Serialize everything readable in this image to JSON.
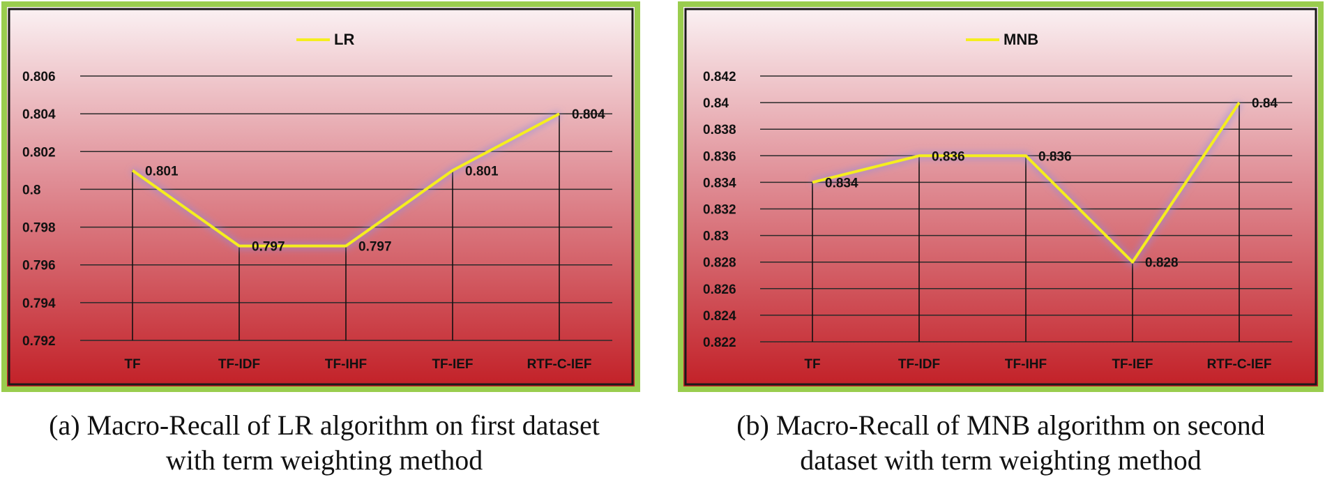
{
  "colors": {
    "frame": "#9acd4e",
    "line": "#f5ee1e",
    "plot_top": "#fbf3f5",
    "plot_bottom": "#c21f26",
    "text": "#111111"
  },
  "chart_data": [
    {
      "type": "line",
      "legend": "LR",
      "legend_position": "top-center",
      "categories": [
        "TF",
        "TF-IDF",
        "TF-IHF",
        "TF-IEF",
        "RTF-C-IEF"
      ],
      "values": [
        0.801,
        0.797,
        0.797,
        0.801,
        0.804
      ],
      "data_labels": [
        "0.801",
        "0.797",
        "0.797",
        "0.801",
        "0.804"
      ],
      "ylim": [
        0.792,
        0.806
      ],
      "yticks": [
        "0.792",
        "0.794",
        "0.796",
        "0.798",
        "0.8",
        "0.802",
        "0.804",
        "0.806"
      ],
      "grid": true,
      "caption_lines": [
        "(a) Macro-Recall of LR algorithm on first dataset",
        "with term weighting method"
      ]
    },
    {
      "type": "line",
      "legend": "MNB",
      "legend_position": "top-center",
      "categories": [
        "TF",
        "TF-IDF",
        "TF-IHF",
        "TF-IEF",
        "RTF-C-IEF"
      ],
      "values": [
        0.834,
        0.836,
        0.836,
        0.828,
        0.84
      ],
      "data_labels": [
        "0.834",
        "0.836",
        "0.836",
        "0.828",
        "0.84"
      ],
      "ylim": [
        0.822,
        0.842
      ],
      "yticks": [
        "0.822",
        "0.824",
        "0.826",
        "0.828",
        "0.83",
        "0.832",
        "0.834",
        "0.836",
        "0.838",
        "0.84",
        "0.842"
      ],
      "grid": true,
      "caption_lines": [
        "(b) Macro-Recall of MNB algorithm on second",
        "dataset with term weighting method"
      ]
    }
  ]
}
